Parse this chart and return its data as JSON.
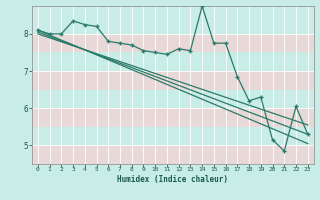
{
  "title": "",
  "xlabel": "Humidex (Indice chaleur)",
  "bg_color": "#c8ece6",
  "plot_bg_color": "#c8ece6",
  "line_color": "#2a7a6a",
  "grid_color": "#ffffff",
  "pink_grid_color": "#e8d8d8",
  "xmin": -0.5,
  "xmax": 23.5,
  "ymin": 4.5,
  "ymax": 8.75,
  "data_x": [
    0,
    1,
    2,
    3,
    4,
    5,
    6,
    7,
    8,
    9,
    10,
    11,
    12,
    13,
    14,
    15,
    16,
    17,
    18,
    19,
    20,
    21,
    22,
    23
  ],
  "data_y": [
    8.1,
    8.0,
    8.0,
    8.35,
    8.25,
    8.2,
    7.8,
    7.75,
    7.7,
    7.55,
    7.5,
    7.45,
    7.6,
    7.55,
    8.75,
    7.75,
    7.75,
    6.85,
    6.2,
    6.3,
    5.15,
    4.85,
    6.05,
    5.3
  ],
  "trend1_x": [
    0,
    23
  ],
  "trend1_y": [
    8.1,
    5.05
  ],
  "trend2_x": [
    0,
    23
  ],
  "trend2_y": [
    8.05,
    5.3
  ],
  "trend3_x": [
    0,
    23
  ],
  "trend3_y": [
    8.0,
    5.55
  ],
  "yticks": [
    5,
    6,
    7,
    8
  ],
  "xticks": [
    0,
    1,
    2,
    3,
    4,
    5,
    6,
    7,
    8,
    9,
    10,
    11,
    12,
    13,
    14,
    15,
    16,
    17,
    18,
    19,
    20,
    21,
    22,
    23
  ]
}
